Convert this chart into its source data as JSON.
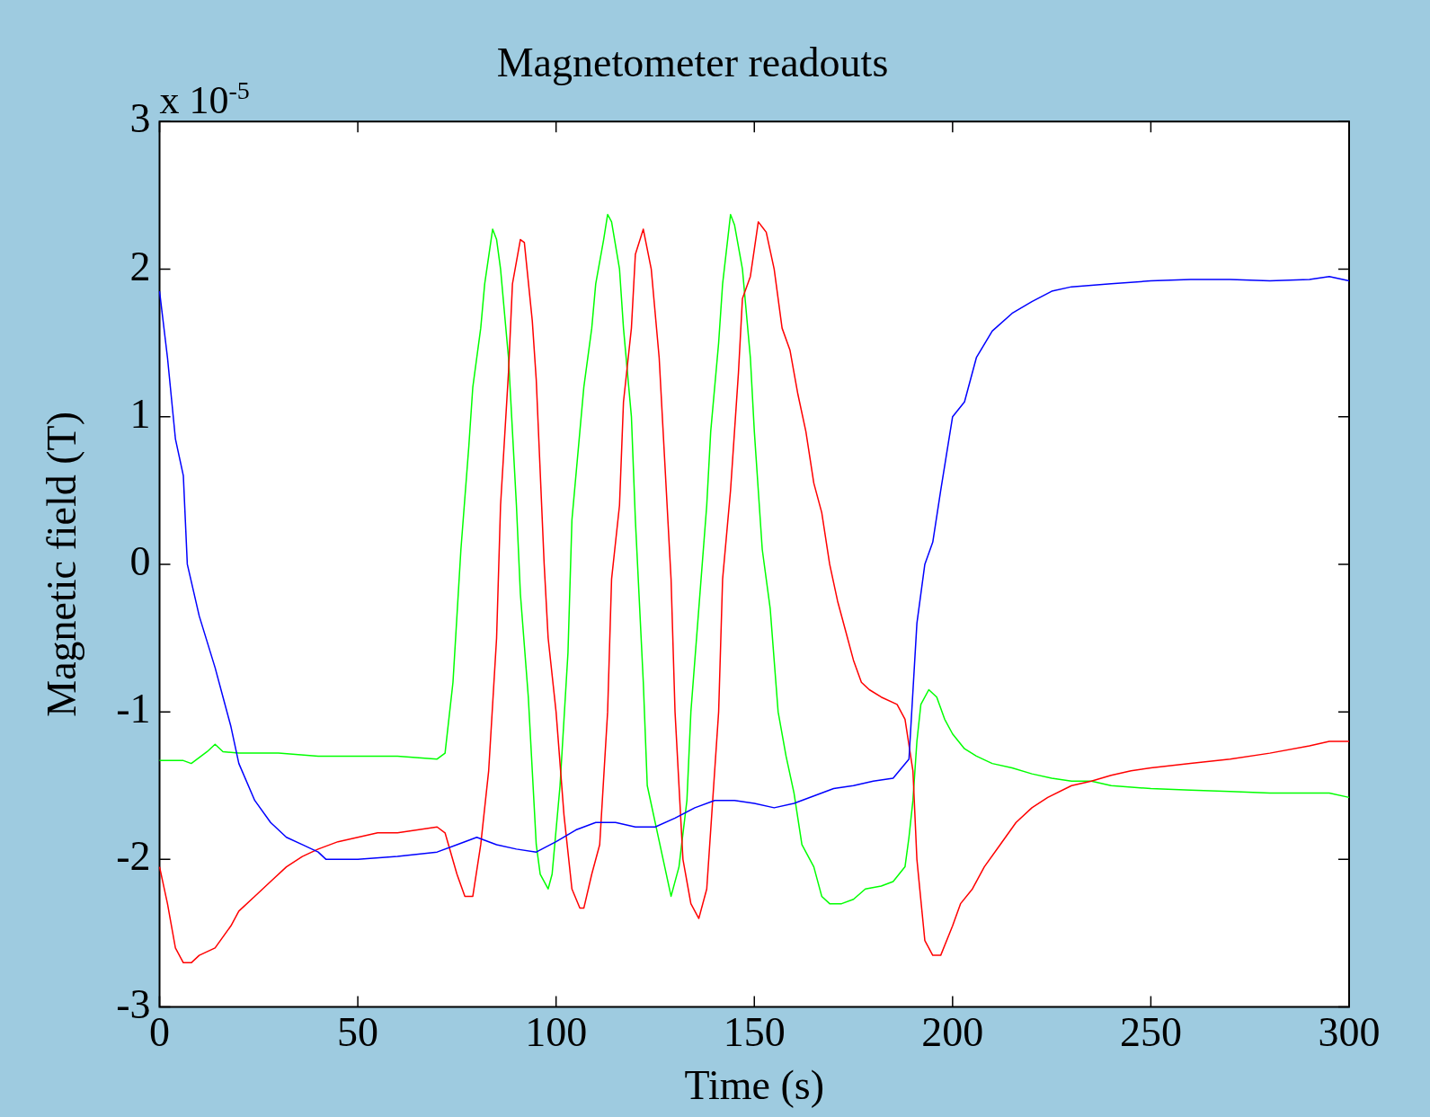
{
  "chart_data": {
    "type": "line",
    "title": "Magnetometer readouts",
    "xlabel": "Time (s)",
    "ylabel": "Magnetic field (T)",
    "annotations": [
      "x 10$^{-5}$"
    ],
    "xlim": [
      0,
      300
    ],
    "xticks": [
      0,
      50,
      100,
      150,
      200,
      250,
      300
    ],
    "ylim": [
      -3,
      3
    ],
    "yticks": [
      -3,
      -2,
      -1,
      0,
      1,
      2,
      3
    ],
    "grid": false,
    "legend": false,
    "marker": "none",
    "line_style": "solid",
    "series": [
      {
        "color": "#0000ff",
        "x": [
          0,
          2,
          4,
          6,
          7,
          10,
          14,
          16,
          18,
          20,
          24,
          28,
          32,
          36,
          40,
          42,
          50,
          60,
          70,
          75,
          80,
          85,
          90,
          95,
          100,
          105,
          110,
          115,
          120,
          125,
          130,
          135,
          140,
          145,
          150,
          155,
          160,
          165,
          170,
          175,
          180,
          185,
          189,
          191,
          193,
          195,
          197,
          200,
          203,
          206,
          210,
          215,
          220,
          225,
          230,
          240,
          250,
          260,
          270,
          280,
          290,
          295,
          300
        ],
        "values": [
          1.85,
          1.4,
          0.85,
          0.6,
          0.0,
          -0.35,
          -0.7,
          -0.9,
          -1.1,
          -1.35,
          -1.6,
          -1.75,
          -1.85,
          -1.9,
          -1.95,
          -2.0,
          -2.0,
          -1.98,
          -1.95,
          -1.9,
          -1.85,
          -1.9,
          -1.93,
          -1.95,
          -1.88,
          -1.8,
          -1.75,
          -1.75,
          -1.78,
          -1.78,
          -1.72,
          -1.65,
          -1.6,
          -1.6,
          -1.62,
          -1.65,
          -1.62,
          -1.57,
          -1.52,
          -1.5,
          -1.47,
          -1.45,
          -1.32,
          -0.4,
          0.0,
          0.15,
          0.5,
          1.0,
          1.1,
          1.4,
          1.58,
          1.7,
          1.78,
          1.85,
          1.88,
          1.9,
          1.92,
          1.93,
          1.93,
          1.92,
          1.93,
          1.95,
          1.92
        ]
      },
      {
        "color": "#ff0000",
        "x": [
          0,
          2,
          4,
          6,
          8,
          10,
          14,
          18,
          20,
          24,
          28,
          32,
          36,
          40,
          45,
          50,
          55,
          60,
          65,
          70,
          72,
          75,
          77,
          79,
          81,
          83,
          85,
          86,
          88,
          89,
          91,
          92,
          94,
          95,
          97,
          98,
          100,
          102,
          104,
          106,
          107,
          109,
          111,
          113,
          114,
          116,
          117,
          119,
          120,
          122,
          124,
          126,
          127,
          129,
          130,
          132,
          134,
          136,
          138,
          139,
          141,
          142,
          144,
          146,
          147,
          149,
          151,
          153,
          155,
          157,
          159,
          161,
          163,
          165,
          167,
          169,
          171,
          173,
          175,
          177,
          179,
          182,
          186,
          188,
          190,
          191,
          193,
          195,
          197,
          200,
          202,
          205,
          208,
          212,
          216,
          220,
          224,
          230,
          235,
          240,
          245,
          250,
          260,
          270,
          280,
          290,
          295,
          300
        ],
        "values": [
          -2.05,
          -2.3,
          -2.6,
          -2.7,
          -2.7,
          -2.65,
          -2.6,
          -2.45,
          -2.35,
          -2.25,
          -2.15,
          -2.05,
          -1.98,
          -1.93,
          -1.88,
          -1.85,
          -1.82,
          -1.82,
          -1.8,
          -1.78,
          -1.82,
          -2.1,
          -2.25,
          -2.25,
          -1.9,
          -1.4,
          -0.5,
          0.4,
          1.3,
          1.9,
          2.2,
          2.18,
          1.65,
          1.25,
          0.0,
          -0.5,
          -1.0,
          -1.7,
          -2.2,
          -2.33,
          -2.33,
          -2.1,
          -1.9,
          -1.0,
          -0.1,
          0.4,
          1.1,
          1.6,
          2.1,
          2.27,
          2.0,
          1.4,
          0.9,
          -0.1,
          -1.0,
          -2.0,
          -2.3,
          -2.4,
          -2.2,
          -1.8,
          -1.0,
          -0.1,
          0.5,
          1.3,
          1.8,
          1.95,
          2.32,
          2.25,
          2.0,
          1.6,
          1.45,
          1.15,
          0.9,
          0.55,
          0.35,
          0.0,
          -0.25,
          -0.45,
          -0.65,
          -0.8,
          -0.85,
          -0.9,
          -0.95,
          -1.05,
          -1.4,
          -2.0,
          -2.55,
          -2.65,
          -2.65,
          -2.45,
          -2.3,
          -2.2,
          -2.05,
          -1.9,
          -1.75,
          -1.65,
          -1.58,
          -1.5,
          -1.47,
          -1.43,
          -1.4,
          -1.38,
          -1.35,
          -1.32,
          -1.28,
          -1.23,
          -1.2,
          -1.2
        ]
      },
      {
        "color": "#00ff00",
        "x": [
          0,
          6,
          8,
          12,
          14,
          16,
          20,
          30,
          40,
          50,
          60,
          70,
          72,
          74,
          76,
          78,
          79,
          81,
          82,
          84,
          85,
          86,
          88,
          89,
          90,
          91,
          93,
          94,
          95,
          96,
          98,
          99,
          101,
          103,
          104,
          106,
          107,
          109,
          110,
          112,
          113,
          114,
          116,
          117,
          119,
          120,
          122,
          123,
          125,
          127,
          129,
          131,
          133,
          134,
          136,
          138,
          139,
          141,
          142,
          144,
          145,
          147,
          149,
          150,
          152,
          154,
          156,
          158,
          160,
          162,
          165,
          167,
          169,
          172,
          175,
          178,
          182,
          185,
          188,
          189,
          190,
          191,
          192,
          194,
          196,
          198,
          200,
          203,
          206,
          210,
          215,
          220,
          225,
          230,
          235,
          240,
          250,
          260,
          270,
          280,
          290,
          295,
          300
        ],
        "values": [
          -1.33,
          -1.33,
          -1.35,
          -1.27,
          -1.22,
          -1.27,
          -1.28,
          -1.28,
          -1.3,
          -1.3,
          -1.3,
          -1.32,
          -1.28,
          -0.8,
          0.1,
          0.8,
          1.2,
          1.6,
          1.9,
          2.27,
          2.2,
          2.0,
          1.4,
          0.9,
          0.4,
          -0.2,
          -0.9,
          -1.4,
          -1.9,
          -2.1,
          -2.2,
          -2.1,
          -1.5,
          -0.6,
          0.3,
          0.9,
          1.2,
          1.6,
          1.9,
          2.2,
          2.37,
          2.32,
          2.0,
          1.6,
          1.0,
          0.3,
          -0.8,
          -1.5,
          -1.75,
          -2.0,
          -2.25,
          -2.05,
          -1.6,
          -1.0,
          -0.3,
          0.4,
          0.9,
          1.5,
          1.9,
          2.37,
          2.3,
          2.0,
          1.4,
          0.9,
          0.1,
          -0.3,
          -1.0,
          -1.3,
          -1.55,
          -1.9,
          -2.05,
          -2.25,
          -2.3,
          -2.3,
          -2.27,
          -2.2,
          -2.18,
          -2.15,
          -2.05,
          -1.85,
          -1.6,
          -1.2,
          -0.95,
          -0.85,
          -0.9,
          -1.05,
          -1.15,
          -1.25,
          -1.3,
          -1.35,
          -1.38,
          -1.42,
          -1.45,
          -1.47,
          -1.47,
          -1.5,
          -1.52,
          -1.53,
          -1.54,
          -1.55,
          -1.55,
          -1.55,
          -1.58
        ]
      }
    ]
  }
}
